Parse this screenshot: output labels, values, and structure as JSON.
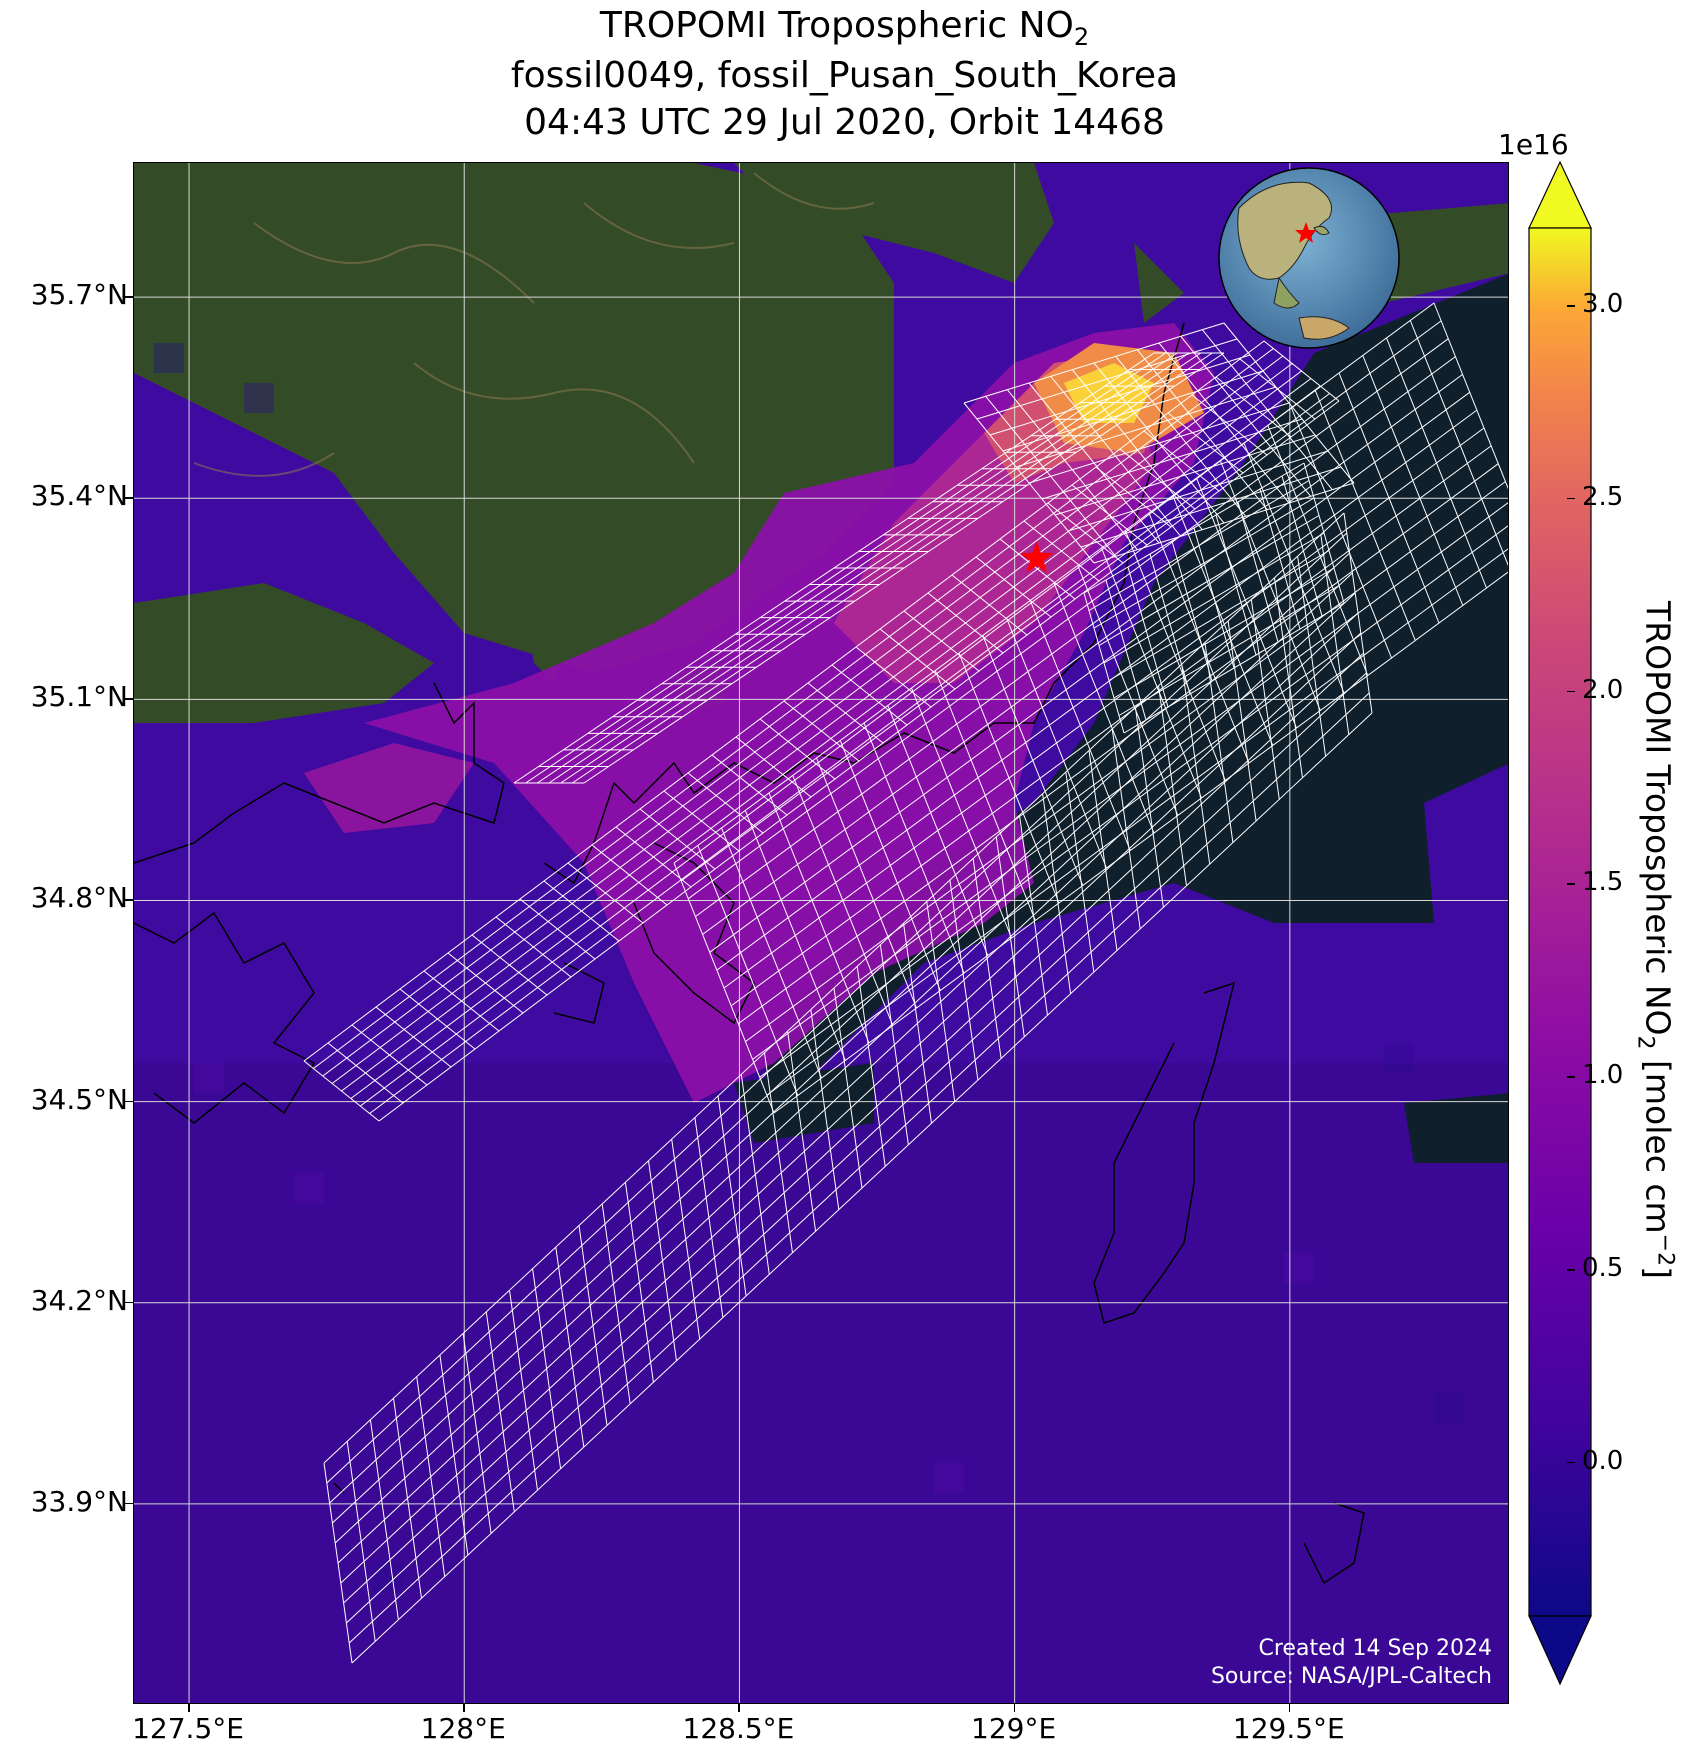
{
  "title": {
    "line1_main": "TROPOMI Tropospheric NO",
    "line1_sub": "2",
    "line2": "fossil0049, fossil_Pusan_South_Korea",
    "line3": "04:43 UTC 29 Jul 2020, Orbit 14468"
  },
  "map": {
    "lon_range": [
      127.4,
      129.9
    ],
    "lat_range": [
      33.6,
      35.9
    ],
    "lon_ticks": [
      {
        "value": 127.5,
        "label": "127.5°E"
      },
      {
        "value": 128.0,
        "label": "128°E"
      },
      {
        "value": 128.5,
        "label": "128.5°E"
      },
      {
        "value": 129.0,
        "label": "129°E"
      },
      {
        "value": 129.5,
        "label": "129.5°E"
      }
    ],
    "lat_ticks": [
      {
        "value": 35.7,
        "label": "35.7°N"
      },
      {
        "value": 35.4,
        "label": "35.4°N"
      },
      {
        "value": 35.1,
        "label": "35.1°N"
      },
      {
        "value": 34.8,
        "label": "34.8°N"
      },
      {
        "value": 34.5,
        "label": "34.5°N"
      },
      {
        "value": 34.2,
        "label": "34.2°N"
      },
      {
        "value": 33.9,
        "label": "33.9°N"
      }
    ],
    "grid": true,
    "source_marker": {
      "lon": 129.04,
      "lat": 35.31,
      "color": "#ff0000",
      "shape": "star"
    },
    "hotspot": {
      "lon": 129.27,
      "lat": 35.55
    },
    "overview_globe": {
      "placement": "top-right",
      "marker_color": "#ff0000"
    }
  },
  "colorbar": {
    "label_main": "TROPOMI Tropospheric NO",
    "label_sub": "2",
    "label_units_open": " [molec cm",
    "label_units_sup": "−2",
    "label_units_close": "]",
    "exponent": "1e16",
    "min": -0.4,
    "max": 3.2,
    "extend": "both",
    "colormap": "plasma",
    "ticks": [
      {
        "value": 0.0,
        "label": "0.0"
      },
      {
        "value": 0.5,
        "label": "0.5"
      },
      {
        "value": 1.0,
        "label": "1.0"
      },
      {
        "value": 1.5,
        "label": "1.5"
      },
      {
        "value": 2.0,
        "label": "2.0"
      },
      {
        "value": 2.5,
        "label": "2.5"
      },
      {
        "value": 3.0,
        "label": "3.0"
      }
    ]
  },
  "credits": {
    "created": "Created 14 Sep 2024",
    "source": "Source: NASA/JPL-Caltech"
  },
  "colors": {
    "land": "#324a26",
    "sea": "#0f1f2c",
    "grid_line": "#d8d8d8",
    "footprint": "#ffffff",
    "coastline": "#000000"
  }
}
